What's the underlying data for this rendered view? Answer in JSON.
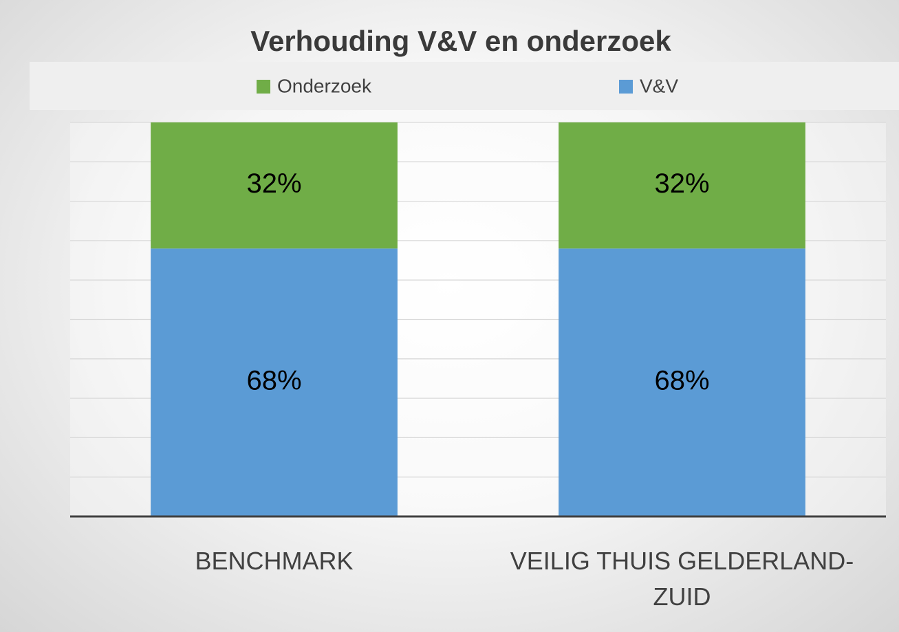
{
  "chart_data": {
    "type": "stacked_bar",
    "title": "Verhouding V&V en onderzoek",
    "categories": [
      "BENCHMARK",
      "VEILIG THUIS GELDERLAND-ZUID"
    ],
    "series": [
      {
        "name": "V&V",
        "color": "#5b9bd5",
        "values": [
          68,
          68
        ],
        "value_labels": [
          "68%",
          "68%"
        ]
      },
      {
        "name": "Onderzoek",
        "color": "#70ad47",
        "values": [
          32,
          32
        ],
        "value_labels": [
          "32%",
          "32%"
        ]
      }
    ],
    "legend_order": [
      "Onderzoek",
      "V&V"
    ],
    "ylim": [
      0,
      100
    ],
    "yticks": [
      0,
      10,
      20,
      30,
      40,
      50,
      60,
      70,
      80,
      90,
      100
    ],
    "ytick_labels": false,
    "grid": true,
    "legend": "top"
  }
}
